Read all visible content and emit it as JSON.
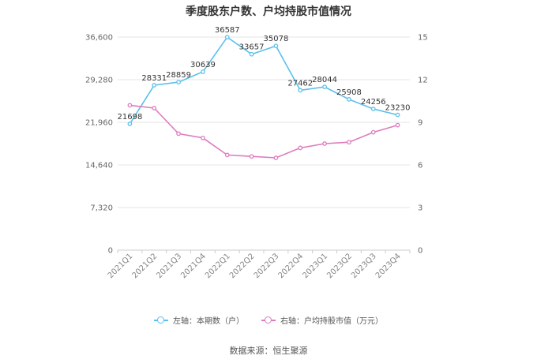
{
  "chart_data": {
    "type": "line",
    "title": "季度股东户数、户均持股市值情况",
    "categories": [
      "2021Q1",
      "2021Q2",
      "2021Q3",
      "2021Q4",
      "2022Q1",
      "2022Q2",
      "2022Q3",
      "2022Q4",
      "2023Q1",
      "2023Q2",
      "2023Q3",
      "2023Q4"
    ],
    "left_axis": {
      "ticks": [
        0,
        7320,
        14640,
        21960,
        29280,
        36600
      ],
      "tick_labels": [
        "0",
        "7,320",
        "14,640",
        "21,960",
        "29,280",
        "36,600"
      ],
      "ylim": [
        0,
        36600
      ]
    },
    "right_axis": {
      "ticks": [
        0,
        3,
        6,
        9,
        12,
        15
      ],
      "tick_labels": [
        "0",
        "3",
        "6",
        "9",
        "12",
        "15"
      ],
      "ylim": [
        0,
        15
      ]
    },
    "series": [
      {
        "name": "左轴：本期数（户）",
        "axis": "left",
        "color": "#5bc0eb",
        "values": [
          21698,
          28331,
          28859,
          30639,
          36587,
          33657,
          35078,
          27462,
          28044,
          25908,
          24256,
          23230
        ],
        "data_labels": [
          "21698",
          "28331",
          "28859",
          "30639",
          "36587",
          "33657",
          "35078",
          "27462",
          "28044",
          "25908",
          "24256",
          "23230"
        ]
      },
      {
        "name": "右轴：户均持股市值（万元）",
        "axis": "right",
        "color": "#de7bbf",
        "values": [
          10.2,
          10.0,
          8.2,
          7.9,
          6.7,
          6.6,
          6.5,
          7.2,
          7.5,
          7.6,
          8.3,
          8.8
        ]
      }
    ],
    "grid": true,
    "legend_position": "bottom"
  },
  "source_text": "数据来源：恒生聚源"
}
